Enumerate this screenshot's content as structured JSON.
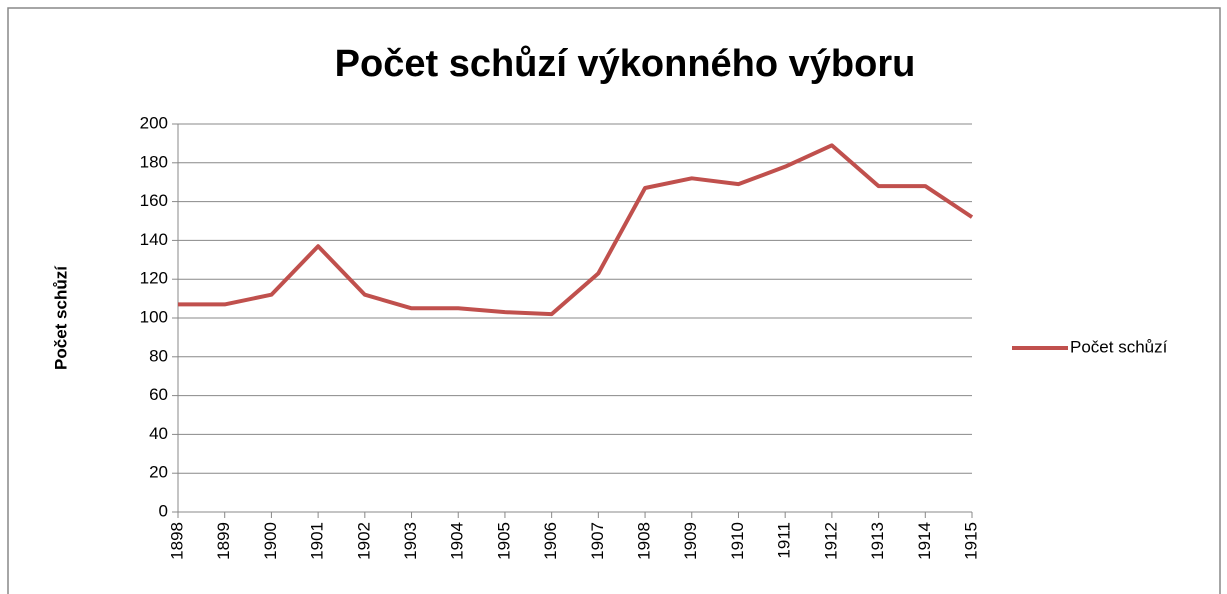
{
  "chart_data": {
    "type": "line",
    "title": "Počet schůzí výkonného výboru",
    "y_label": "Počet schůzí",
    "categories": [
      "1898",
      "1899",
      "1900",
      "1901",
      "1902",
      "1903",
      "1904",
      "1905",
      "1906",
      "1907",
      "1908",
      "1909",
      "1910",
      "1911",
      "1912",
      "1913",
      "1914",
      "1915"
    ],
    "series": [
      {
        "name": "Počet schůzí",
        "color": "#c0504d",
        "values": [
          107,
          107,
          112,
          137,
          112,
          105,
          105,
          103,
          102,
          123,
          167,
          172,
          169,
          178,
          189,
          168,
          168,
          152
        ]
      }
    ],
    "ylim": [
      0,
      200
    ],
    "yticks": [
      0,
      20,
      40,
      60,
      80,
      100,
      120,
      140,
      160,
      180,
      200
    ],
    "grid": true,
    "legend": "right"
  }
}
